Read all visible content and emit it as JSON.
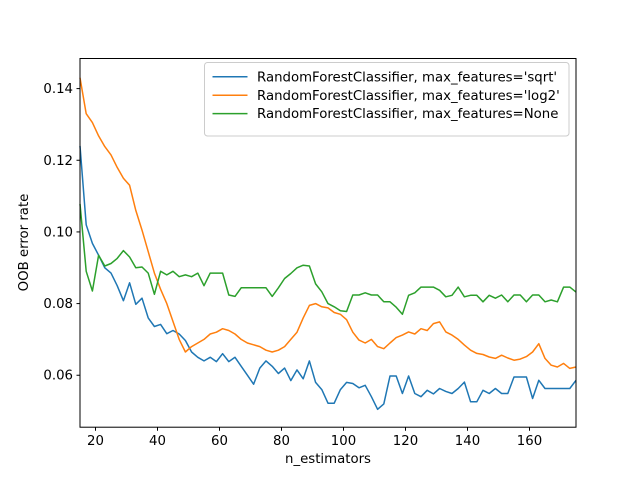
{
  "figure": {
    "background": "#ffffff",
    "spine_color": "#000000",
    "text_color": "#000000",
    "legend_border_color": "#cccccc"
  },
  "chart_data": {
    "type": "line",
    "title": "",
    "xlabel": "n_estimators",
    "ylabel": "OOB error rate",
    "xlim": [
      15,
      175
    ],
    "ylim": [
      0.0455,
      0.1484
    ],
    "grid": false,
    "legend_position": "upper right",
    "x_ticks": {
      "values": [
        20,
        40,
        60,
        80,
        100,
        120,
        140,
        160
      ],
      "labels": [
        "20",
        "40",
        "60",
        "80",
        "100",
        "120",
        "140",
        "160"
      ]
    },
    "y_ticks": {
      "values": [
        0.06,
        0.08,
        0.1,
        0.12,
        0.14
      ],
      "labels": [
        "0.06",
        "0.08",
        "0.10",
        "0.12",
        "0.14"
      ]
    },
    "x": [
      15,
      17,
      19,
      21,
      23,
      25,
      27,
      29,
      31,
      33,
      35,
      37,
      39,
      41,
      43,
      45,
      47,
      49,
      51,
      53,
      55,
      57,
      59,
      61,
      63,
      65,
      67,
      69,
      71,
      73,
      75,
      77,
      79,
      81,
      83,
      85,
      87,
      89,
      91,
      93,
      95,
      97,
      99,
      101,
      103,
      105,
      107,
      109,
      111,
      113,
      115,
      117,
      119,
      121,
      123,
      125,
      127,
      129,
      131,
      133,
      135,
      137,
      139,
      141,
      143,
      145,
      147,
      149,
      151,
      153,
      155,
      157,
      159,
      161,
      163,
      165,
      167,
      169,
      171,
      173,
      175
    ],
    "series": [
      {
        "name": "RandomForestClassifier, max_features='sqrt'",
        "color": "#1f77b4",
        "values": [
          0.124,
          0.102,
          0.0968,
          0.0935,
          0.09,
          0.0885,
          0.085,
          0.0808,
          0.0858,
          0.0798,
          0.0815,
          0.076,
          0.0736,
          0.0742,
          0.0716,
          0.0725,
          0.0715,
          0.0697,
          0.0665,
          0.065,
          0.064,
          0.065,
          0.0638,
          0.066,
          0.0638,
          0.065,
          0.0625,
          0.06,
          0.0575,
          0.062,
          0.064,
          0.0625,
          0.0605,
          0.062,
          0.0585,
          0.0615,
          0.059,
          0.064,
          0.058,
          0.056,
          0.0522,
          0.0522,
          0.056,
          0.058,
          0.0577,
          0.0565,
          0.0572,
          0.054,
          0.0505,
          0.052,
          0.0598,
          0.0598,
          0.0549,
          0.0598,
          0.0549,
          0.054,
          0.0558,
          0.0548,
          0.0563,
          0.0555,
          0.0549,
          0.0563,
          0.0581,
          0.0526,
          0.0526,
          0.0558,
          0.0549,
          0.0563,
          0.0549,
          0.0549,
          0.0595,
          0.0595,
          0.0595,
          0.0535,
          0.0586,
          0.0563,
          0.0563,
          0.0563,
          0.0563,
          0.0563,
          0.0586
        ]
      },
      {
        "name": "RandomForestClassifier, max_features='log2'",
        "color": "#ff7f0e",
        "values": [
          0.143,
          0.133,
          0.1305,
          0.1268,
          0.1238,
          0.1215,
          0.118,
          0.115,
          0.113,
          0.106,
          0.1005,
          0.0945,
          0.0885,
          0.084,
          0.08,
          0.075,
          0.07,
          0.0665,
          0.068,
          0.069,
          0.07,
          0.0715,
          0.072,
          0.073,
          0.0725,
          0.0715,
          0.07,
          0.069,
          0.0685,
          0.068,
          0.067,
          0.0665,
          0.067,
          0.068,
          0.07,
          0.072,
          0.076,
          0.0795,
          0.08,
          0.0791,
          0.0788,
          0.0775,
          0.077,
          0.0755,
          0.072,
          0.0698,
          0.069,
          0.07,
          0.068,
          0.0674,
          0.069,
          0.0705,
          0.0712,
          0.0721,
          0.0715,
          0.073,
          0.0725,
          0.0744,
          0.0749,
          0.0721,
          0.0712,
          0.07,
          0.0684,
          0.067,
          0.0661,
          0.0658,
          0.0651,
          0.0647,
          0.0656,
          0.0648,
          0.0642,
          0.0645,
          0.0652,
          0.0665,
          0.0688,
          0.0647,
          0.0628,
          0.0623,
          0.0633,
          0.0619,
          0.0623
        ]
      },
      {
        "name": "RandomForestClassifier, max_features=None",
        "color": "#2ca02c",
        "values": [
          0.1078,
          0.089,
          0.0835,
          0.0935,
          0.0905,
          0.0912,
          0.0926,
          0.0948,
          0.093,
          0.09,
          0.0902,
          0.0885,
          0.0826,
          0.089,
          0.088,
          0.089,
          0.0875,
          0.088,
          0.0875,
          0.0885,
          0.085,
          0.0885,
          0.0885,
          0.0885,
          0.0824,
          0.082,
          0.0844,
          0.0844,
          0.0844,
          0.0844,
          0.0844,
          0.082,
          0.0844,
          0.087,
          0.0884,
          0.09,
          0.0907,
          0.0905,
          0.0855,
          0.0833,
          0.08,
          0.0791,
          0.078,
          0.0778,
          0.0824,
          0.0824,
          0.083,
          0.0824,
          0.0824,
          0.0805,
          0.0805,
          0.079,
          0.077,
          0.0823,
          0.083,
          0.0846,
          0.0846,
          0.0846,
          0.0837,
          0.0819,
          0.0823,
          0.0846,
          0.0819,
          0.0823,
          0.0823,
          0.0805,
          0.0823,
          0.0815,
          0.0824,
          0.0805,
          0.0824,
          0.0824,
          0.0805,
          0.0824,
          0.0824,
          0.0805,
          0.081,
          0.0805,
          0.0846,
          0.0846,
          0.0832
        ]
      }
    ]
  }
}
